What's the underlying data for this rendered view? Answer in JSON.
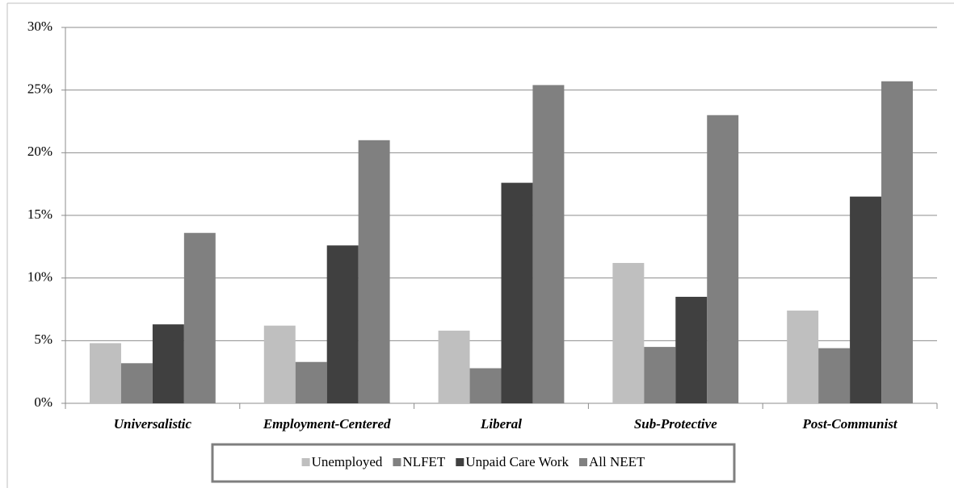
{
  "chart_data": {
    "type": "bar",
    "categories": [
      "Universalistic",
      "Employment-Centered",
      "Liberal",
      "Sub-Protective",
      "Post-Communist"
    ],
    "series": [
      {
        "name": "Unemployed",
        "color": "#bfbfbf",
        "values": [
          4.8,
          6.2,
          5.8,
          11.2,
          7.4
        ]
      },
      {
        "name": "NLFET",
        "color": "#808080",
        "values": [
          3.2,
          3.3,
          2.8,
          4.5,
          4.4
        ]
      },
      {
        "name": "Unpaid Care Work",
        "color": "#404040",
        "values": [
          6.3,
          12.6,
          17.6,
          8.5,
          16.5
        ]
      },
      {
        "name": "All NEET",
        "color": "#808080",
        "values": [
          13.6,
          21.0,
          25.4,
          23.0,
          25.7
        ]
      }
    ],
    "ylim": [
      0,
      30
    ],
    "yticks": [
      {
        "value": 0,
        "label": "0%"
      },
      {
        "value": 5,
        "label": "5%"
      },
      {
        "value": 10,
        "label": "10%"
      },
      {
        "value": 15,
        "label": "15%"
      },
      {
        "value": 20,
        "label": "20%"
      },
      {
        "value": 25,
        "label": "25%"
      },
      {
        "value": 30,
        "label": "30%"
      }
    ],
    "grid": true,
    "legend": "bottom"
  }
}
